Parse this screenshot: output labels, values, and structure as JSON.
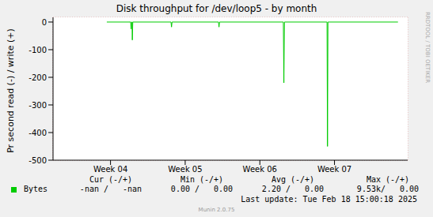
{
  "chart_data": {
    "type": "line",
    "title": "Disk throughput for /dev/loop5 - by month",
    "y_label": "Pr second read (-) / write (+)",
    "x": [
      3.95,
      4.27,
      4.276,
      4.282,
      4.288,
      4.292,
      4.298,
      4.81,
      4.817,
      4.824,
      5.446,
      5.453,
      5.46,
      6.315,
      6.322,
      6.329,
      6.9,
      6.906,
      6.912,
      7.85
    ],
    "series": [
      {
        "name": "Bytes",
        "color": "#00cc00",
        "values": [
          0,
          0,
          -25,
          0,
          0,
          -65,
          0,
          0,
          -18,
          0,
          0,
          -18,
          0,
          0,
          -220,
          0,
          0,
          -450,
          0,
          0
        ]
      }
    ],
    "xlim": [
      3.23,
      7.98
    ],
    "xticks": [
      {
        "value": 4,
        "label": "Week 04"
      },
      {
        "value": 5,
        "label": "Week 05"
      },
      {
        "value": 6,
        "label": "Week 06"
      },
      {
        "value": 7,
        "label": "Week 07"
      }
    ],
    "ylim": [
      -500,
      17
    ],
    "yticks": [
      -500,
      -400,
      -300,
      -200,
      -100,
      0
    ],
    "grid": true,
    "stats": {
      "headers": [
        "Cur (-/+)",
        "Min (-/+)",
        "Avg (-/+)",
        "Max (-/+)"
      ],
      "rows": [
        {
          "name": "Bytes",
          "cells": [
            "-nan /   -nan",
            "0.00 /   0.00",
            "2.20 /   0.00",
            "9.53k/   0.00"
          ]
        }
      ]
    },
    "footer": "Last update: Tue Feb 18 15:00:18 2025",
    "credit": "Munin 2.0.75",
    "watermark": "RRDTOOL / TOBI OETIKER"
  }
}
